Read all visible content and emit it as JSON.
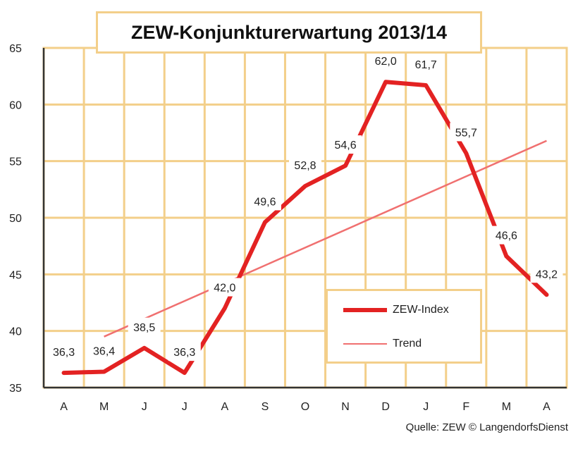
{
  "chart_data": {
    "type": "line",
    "title": "ZEW-Konjunkturerwartung 2013/14",
    "categories": [
      "A",
      "M",
      "J",
      "J",
      "A",
      "S",
      "O",
      "N",
      "D",
      "J",
      "F",
      "M",
      "A"
    ],
    "yticks": [
      "35",
      "40",
      "45",
      "50",
      "55",
      "60",
      "65"
    ],
    "ylim": [
      35,
      65
    ],
    "series": [
      {
        "name": "ZEW-Index",
        "color": "#e32222",
        "values": [
          36.3,
          36.4,
          38.5,
          36.3,
          null,
          49.6,
          52.8,
          54.6,
          62.0,
          61.7,
          55.7,
          46.6,
          43.2
        ],
        "labels": [
          "36,3",
          "36,4",
          "38,5",
          "36,3",
          null,
          "49,6",
          "52,8",
          "54,6",
          "62,0",
          "61,7",
          "55,7",
          "46,6",
          "43,2"
        ],
        "label_points": [
          [
            0.5,
            36.3
          ],
          [
            1.5,
            36.4
          ],
          [
            2.5,
            38.5
          ],
          [
            3.5,
            36.3
          ],
          [
            4.5,
            42.0
          ],
          [
            5.5,
            49.6
          ],
          [
            6.5,
            52.8
          ],
          [
            7.5,
            54.6
          ],
          [
            8.5,
            62.0
          ],
          [
            9.5,
            61.7
          ],
          [
            10.5,
            55.7
          ],
          [
            11.5,
            46.6
          ],
          [
            12.5,
            43.2
          ]
        ]
      },
      {
        "name": "Trend",
        "color": "#f07070",
        "start": [
          1.5,
          39.5
        ],
        "end": [
          12.5,
          56.8
        ]
      }
    ],
    "annotations": [
      {
        "text": "42,0",
        "x": 4.5,
        "y": 42.0
      }
    ],
    "grid": true,
    "legend_position": "bottom-right"
  },
  "source": "Quelle: ZEW © LangendorfsDienst"
}
